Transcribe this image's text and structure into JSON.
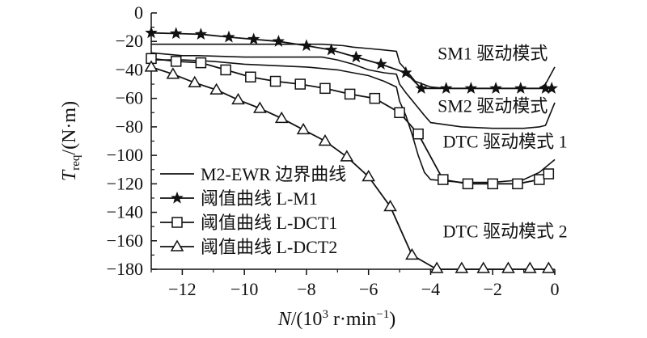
{
  "chart_data": {
    "type": "line",
    "xlabel": {
      "var": "N",
      "unit_pre": "/(10",
      "exp": "3",
      "unit_mid": " r·min",
      "unit_exp": "−1",
      "unit_post": ")"
    },
    "ylabel": {
      "var": "T",
      "sub": "req",
      "unit": "/(N·m)"
    },
    "xlim": [
      -13,
      0
    ],
    "ylim": [
      -180,
      0
    ],
    "x_ticks": [
      -12,
      -10,
      -8,
      -6,
      -4,
      -2,
      0
    ],
    "x_tick_labels": [
      "−12",
      "−10",
      "−8",
      "−6",
      "−4",
      "−2",
      "0"
    ],
    "y_ticks": [
      0,
      -20,
      -40,
      -60,
      -80,
      -100,
      -120,
      -140,
      -160,
      -180
    ],
    "y_tick_labels": [
      "0",
      "−20",
      "−40",
      "−60",
      "−80",
      "−100",
      "−120",
      "−140",
      "−160",
      "−180"
    ],
    "grid": false,
    "legend_position": "bottom-left",
    "annotations": [
      {
        "text": "SM1 驱动模式",
        "x": -2.0,
        "y": -28
      },
      {
        "text": "SM2 驱动模式",
        "x": -2.0,
        "y": -65
      },
      {
        "text": "DTC 驱动模式 1",
        "x": -1.6,
        "y": -90
      },
      {
        "text": "DTC 驱动模式 2",
        "x": -1.6,
        "y": -153
      }
    ],
    "boundary_curves": [
      {
        "x": [
          -13,
          -11.5,
          -10.5,
          -9,
          -7.5,
          -6.8,
          -6.5,
          -6.0,
          -5.5,
          -5.1,
          -5.0,
          -4.8,
          -4.5,
          -4.0,
          -3.5,
          -3.0,
          -2.0,
          -1.0,
          -0.5,
          -0.3,
          0
        ],
        "y": [
          -22,
          -22,
          -22,
          -22,
          -22,
          -23,
          -24,
          -25,
          -26,
          -27,
          -35,
          -40,
          -48,
          -52,
          -53,
          -53,
          -53,
          -53,
          -53,
          -50,
          -38
        ]
      },
      {
        "x": [
          -13,
          -12.0,
          -11.5,
          -10.0,
          -8.5,
          -7.5,
          -7.0,
          -6.5,
          -6.0,
          -5.5,
          -5.1,
          -5.0,
          -4.8,
          -4.5,
          -4.2,
          -4.0,
          -3.0,
          -2.0,
          -1.0,
          -0.5,
          -0.3,
          0
        ],
        "y": [
          -28,
          -30,
          -30,
          -31,
          -31,
          -31,
          -33,
          -36,
          -40,
          -42,
          -43,
          -50,
          -56,
          -64,
          -72,
          -77,
          -80,
          -81,
          -81,
          -80,
          -79,
          -63
        ]
      },
      {
        "x": [
          -13,
          -12.0,
          -11.0,
          -10.0,
          -9.0,
          -8.0,
          -7.0,
          -6.5,
          -6.0,
          -5.5,
          -5.1,
          -5.0,
          -4.8,
          -4.6,
          -4.4,
          -4.2,
          -4.0,
          -3.0,
          -2.0,
          -1.0,
          -0.5,
          0
        ],
        "y": [
          -33,
          -33,
          -34,
          -36,
          -37,
          -38,
          -40,
          -42,
          -44,
          -48,
          -52,
          -62,
          -72,
          -85,
          -100,
          -112,
          -117,
          -119,
          -119,
          -117,
          -112,
          -103
        ]
      }
    ],
    "series": [
      {
        "name": "M2-EWR 边界曲线",
        "marker": "none",
        "x": [
          -13,
          -11.5,
          -10.5,
          -9,
          -7.5,
          -6.8,
          -6.5,
          -6.0,
          -5.5,
          -5.1,
          -5.0,
          -4.8,
          -4.5,
          -4.0,
          -3.5,
          -3.0,
          -2.0,
          -1.0,
          -0.5,
          -0.3,
          0
        ],
        "y": [
          -22,
          -22,
          -22,
          -22,
          -22,
          -23,
          -24,
          -25,
          -26,
          -27,
          -35,
          -40,
          -48,
          -52,
          -53,
          -53,
          -53,
          -53,
          -53,
          -50,
          -38
        ]
      },
      {
        "name": "阈值曲线 L-M1",
        "marker": "star",
        "x": [
          -13.0,
          -12.2,
          -11.4,
          -10.5,
          -9.7,
          -8.9,
          -8.0,
          -7.2,
          -6.4,
          -5.6,
          -4.8,
          -4.3,
          -3.5,
          -2.7,
          -1.9,
          -1.1,
          -0.3,
          -0.1
        ],
        "y": [
          -14,
          -14.5,
          -15,
          -17,
          -18.5,
          -20,
          -23,
          -26,
          -31,
          -36,
          -42,
          -53,
          -53,
          -53,
          -53,
          -53,
          -53,
          -53
        ]
      },
      {
        "name": "阈值曲线 L-DCT1",
        "marker": "square",
        "x": [
          -13.0,
          -12.2,
          -11.4,
          -10.6,
          -9.8,
          -9.0,
          -8.2,
          -7.4,
          -6.6,
          -5.8,
          -5.0,
          -4.4,
          -3.6,
          -2.8,
          -2.0,
          -1.2,
          -0.5,
          -0.2
        ],
        "y": [
          -32,
          -34,
          -35,
          -40,
          -45,
          -48,
          -50,
          -53,
          -57,
          -60,
          -70,
          -85,
          -117,
          -120,
          -120,
          -120,
          -117,
          -113
        ]
      },
      {
        "name": "阈值曲线 L-DCT2",
        "marker": "triangle",
        "x": [
          -13.0,
          -12.3,
          -11.6,
          -10.9,
          -10.2,
          -9.5,
          -8.8,
          -8.1,
          -7.4,
          -6.7,
          -6.0,
          -5.3,
          -4.6,
          -3.8,
          -3.0,
          -2.3,
          -1.5,
          -0.8,
          -0.2
        ],
        "y": [
          -38,
          -43,
          -49,
          -54,
          -61,
          -67,
          -74,
          -82,
          -90,
          -101,
          -115,
          -136,
          -170,
          -180,
          -180,
          -180,
          -180,
          -180,
          -180
        ]
      }
    ]
  }
}
